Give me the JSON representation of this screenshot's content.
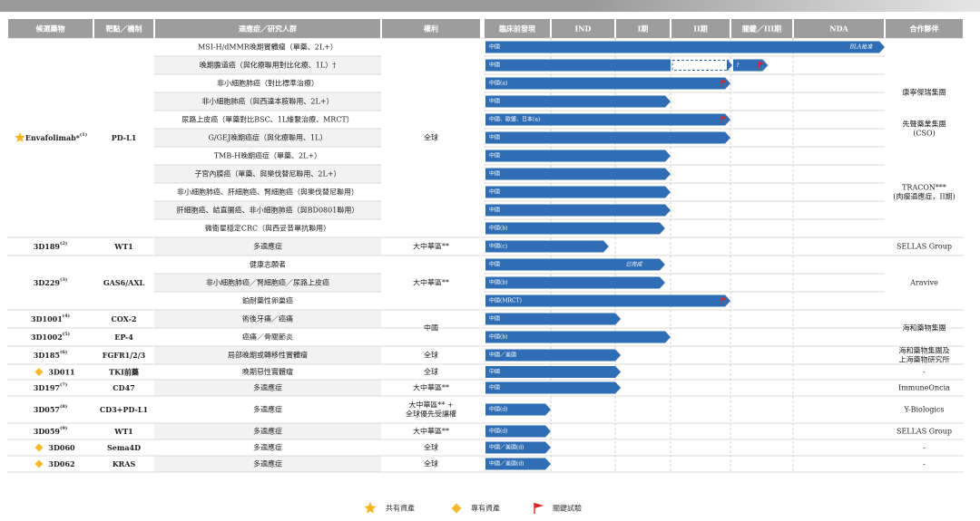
{
  "colors": {
    "header_bg": "#9d9d9d",
    "bar": "#2f6db5",
    "row_band": "#f2f2f2",
    "star": "#f3b61f",
    "diamond": "#f5b82e",
    "flag": "#d9252b"
  },
  "columns": {
    "drug": "候選藥物",
    "target": "靶點／機制",
    "indication": "適應症／研究人群",
    "rights": "權利",
    "preclinical": "臨床前發現",
    "ind": "IND",
    "ph1": "I期",
    "ph2": "II期",
    "pivotal": "關鍵／III期",
    "nda": "NDA",
    "partner": "合作夥伴"
  },
  "rows": [
    {
      "indication": "MSI-H/dMMR晚期實體瘤（單藥、2L+）",
      "bar_label": "中國",
      "stage": 6.0,
      "note": "BLA批准",
      "flag": false,
      "dashed": null
    },
    {
      "indication": "晚期膽道癌（與化療聯用對比化療、1L）†",
      "bar_label": "中國",
      "stage": 4.6,
      "note": "†",
      "flag": true,
      "dashed": [
        3.0,
        4.0
      ]
    },
    {
      "indication": "非小細胞肺癌（對比標準治療）",
      "bar_label": "中國(a)",
      "stage": 4.0,
      "note": "",
      "flag": true,
      "dashed": null
    },
    {
      "indication": "非小細胞肺癌（與西達本胺聯用、2L+）",
      "bar_label": "中國",
      "stage": 3.0,
      "note": "",
      "flag": false,
      "dashed": null
    },
    {
      "indication": "尿路上皮癌（單藥對比BSC、1L維繫治療、MRCT）",
      "bar_label": "中國、歐盟、日本(a)",
      "stage": 4.0,
      "note": "",
      "flag": true,
      "dashed": null
    },
    {
      "indication": "G/GEJ晚期癌症（與化療聯用、1L）",
      "bar_label": "中國",
      "stage": 4.0,
      "note": "",
      "flag": false,
      "dashed": null
    },
    {
      "indication": "TMB-H晚期癌症（單藥、2L+）",
      "bar_label": "中國",
      "stage": 3.0,
      "note": "",
      "flag": false,
      "dashed": null
    },
    {
      "indication": "子宮內膜癌（單藥、與樂伐替尼聯用、2L+）",
      "bar_label": "中國",
      "stage": 3.0,
      "note": "",
      "flag": false,
      "dashed": null
    },
    {
      "indication": "非小細胞肺癌、肝細胞癌、腎細胞癌（與樂伐替尼聯用）",
      "bar_label": "中國",
      "stage": 3.0,
      "note": "",
      "flag": false,
      "dashed": null
    },
    {
      "indication": "肝細胞癌、結直腸癌、非小細胞肺癌（與BD0801聯用）",
      "bar_label": "中國",
      "stage": 3.0,
      "note": "",
      "flag": false,
      "dashed": null
    },
    {
      "indication": "微衛星穩定CRC（與西妥昔單抗聯用）",
      "bar_label": "中國(b)",
      "stage": 2.9,
      "note": "",
      "flag": false,
      "dashed": null
    },
    {
      "indication": "多適應症",
      "bar_label": "中國(c)",
      "stage": 1.9,
      "note": "",
      "flag": false,
      "dashed": null
    },
    {
      "indication": "健康志願者",
      "bar_label": "中國",
      "stage": 2.9,
      "note": "已完成",
      "flag": false,
      "dashed": null
    },
    {
      "indication": "非小細胞肺癌／腎細胞癌／尿路上皮癌",
      "bar_label": "中國(b)",
      "stage": 2.9,
      "note": "",
      "flag": false,
      "dashed": null
    },
    {
      "indication": "鉑耐藥性卵巢癌",
      "bar_label": "中國(MRCT)",
      "stage": 4.0,
      "note": "",
      "flag": true,
      "dashed": null
    },
    {
      "indication": "術後牙痛／癌痛",
      "bar_label": "中國",
      "stage": 2.1,
      "note": "",
      "flag": false,
      "dashed": null
    },
    {
      "indication": "癌痛／骨關節炎",
      "bar_label": "中國(b)",
      "stage": 3.0,
      "note": "",
      "flag": false,
      "dashed": null
    },
    {
      "indication": "局部晚期或轉移性實體瘤",
      "bar_label": "中國／美國",
      "stage": 2.1,
      "note": "",
      "flag": false,
      "dashed": null
    },
    {
      "indication": "晚期惡性實體瘤",
      "bar_label": "中國",
      "stage": 2.1,
      "note": "",
      "flag": false,
      "dashed": null
    },
    {
      "indication": "多適應症",
      "bar_label": "中國",
      "stage": 2.1,
      "note": "",
      "flag": false,
      "dashed": null
    },
    {
      "indication": "多適應症",
      "bar_label": "中國(d)",
      "stage": 1.0,
      "note": "",
      "flag": false,
      "dashed": null
    },
    {
      "indication": "多適應症",
      "bar_label": "中國(d)",
      "stage": 1.0,
      "note": "",
      "flag": false,
      "dashed": null
    },
    {
      "indication": "多適應症",
      "bar_label": "中國／美國(d)",
      "stage": 1.0,
      "note": "",
      "flag": false,
      "dashed": null
    },
    {
      "indication": "多適應症",
      "bar_label": "中國／美國(d)",
      "stage": 1.0,
      "note": "",
      "flag": false,
      "dashed": null
    }
  ],
  "groups": [
    {
      "drug": "Envafolimab*",
      "sup": "(1)",
      "target": "PD-L1",
      "start": 0,
      "span": 11,
      "icon": "star-icon"
    },
    {
      "drug": "3D189",
      "sup": "(2)",
      "target": "WT1",
      "start": 11,
      "span": 1,
      "icon": ""
    },
    {
      "drug": "3D229",
      "sup": "(3)",
      "target": "GAS6/AXL",
      "start": 12,
      "span": 3,
      "icon": ""
    },
    {
      "drug": "3D1001",
      "sup": "(4)",
      "target": "COX-2",
      "start": 15,
      "span": 1,
      "icon": ""
    },
    {
      "drug": "3D1002",
      "sup": "(5)",
      "target": "EP-4",
      "start": 16,
      "span": 1,
      "icon": ""
    },
    {
      "drug": "3D185",
      "sup": "(6)",
      "target": "FGFR1/2/3",
      "start": 17,
      "span": 1,
      "icon": ""
    },
    {
      "drug": "3D011",
      "sup": "",
      "target": "TKI前藥",
      "start": 18,
      "span": 1,
      "icon": "diamond-icon"
    },
    {
      "drug": "3D197",
      "sup": "(7)",
      "target": "CD47",
      "start": 19,
      "span": 1,
      "icon": ""
    },
    {
      "drug": "3D057",
      "sup": "(8)",
      "target": "CD3+PD-L1",
      "start": 20,
      "span": 1,
      "icon": ""
    },
    {
      "drug": "3D059",
      "sup": "(9)",
      "target": "WT1",
      "start": 21,
      "span": 1,
      "icon": ""
    },
    {
      "drug": "3D060",
      "sup": "",
      "target": "Sema4D",
      "start": 22,
      "span": 1,
      "icon": "diamond-icon"
    },
    {
      "drug": "3D062",
      "sup": "",
      "target": "KRAS",
      "start": 23,
      "span": 1,
      "icon": "diamond-icon"
    }
  ],
  "rights_groups": [
    {
      "lines": [
        "全球"
      ],
      "start": 0,
      "span": 11
    },
    {
      "lines": [
        "大中華區**"
      ],
      "start": 11,
      "span": 1
    },
    {
      "lines": [
        "大中華區**"
      ],
      "start": 12,
      "span": 3
    },
    {
      "lines": [
        "中國"
      ],
      "start": 15,
      "span": 2
    },
    {
      "lines": [
        "全球"
      ],
      "start": 17,
      "span": 1
    },
    {
      "lines": [
        "全球"
      ],
      "start": 18,
      "span": 1
    },
    {
      "lines": [
        "大中華區**"
      ],
      "start": 19,
      "span": 1
    },
    {
      "lines": [
        "大中華區** +",
        "全球優先受讓權"
      ],
      "start": 20,
      "span": 1
    },
    {
      "lines": [
        "大中華區**"
      ],
      "start": 21,
      "span": 1
    },
    {
      "lines": [
        "全球"
      ],
      "start": 22,
      "span": 1
    },
    {
      "lines": [
        "全球"
      ],
      "start": 23,
      "span": 1
    }
  ],
  "partner_groups": [
    {
      "lines": [
        ""
      ],
      "start": 0,
      "span": 2
    },
    {
      "lines": [
        "康寧傑瑞集團"
      ],
      "start": 2,
      "span": 2
    },
    {
      "lines": [
        "先聲藥業集團",
        "(CSO)"
      ],
      "start": 4,
      "span": 2
    },
    {
      "lines": [
        ""
      ],
      "start": 6,
      "span": 1
    },
    {
      "lines": [
        "TRACON***",
        "(肉瘤適應症，II期)"
      ],
      "start": 7,
      "span": 3
    },
    {
      "lines": [
        ""
      ],
      "start": 10,
      "span": 1
    },
    {
      "lines": [
        "SELLAS Group"
      ],
      "start": 11,
      "span": 1
    },
    {
      "lines": [
        "Aravive"
      ],
      "start": 12,
      "span": 3
    },
    {
      "lines": [
        "海和藥物集團"
      ],
      "start": 15,
      "span": 2
    },
    {
      "lines": [
        "海和藥物集團及",
        "上海藥物研究所"
      ],
      "start": 17,
      "span": 1
    },
    {
      "lines": [
        "-"
      ],
      "start": 18,
      "span": 1
    },
    {
      "lines": [
        "ImmuneOncia"
      ],
      "start": 19,
      "span": 1
    },
    {
      "lines": [
        "Y-Biologics"
      ],
      "start": 20,
      "span": 1
    },
    {
      "lines": [
        "SELLAS Group"
      ],
      "start": 21,
      "span": 1
    },
    {
      "lines": [
        "-"
      ],
      "start": 22,
      "span": 1
    },
    {
      "lines": [
        "-"
      ],
      "start": 23,
      "span": 1
    }
  ],
  "legend": [
    {
      "icon": "star-icon",
      "label": "共有資產"
    },
    {
      "icon": "diamond-icon",
      "label": "專有資產"
    },
    {
      "icon": "flag-icon",
      "label": "關鍵試驗"
    }
  ]
}
